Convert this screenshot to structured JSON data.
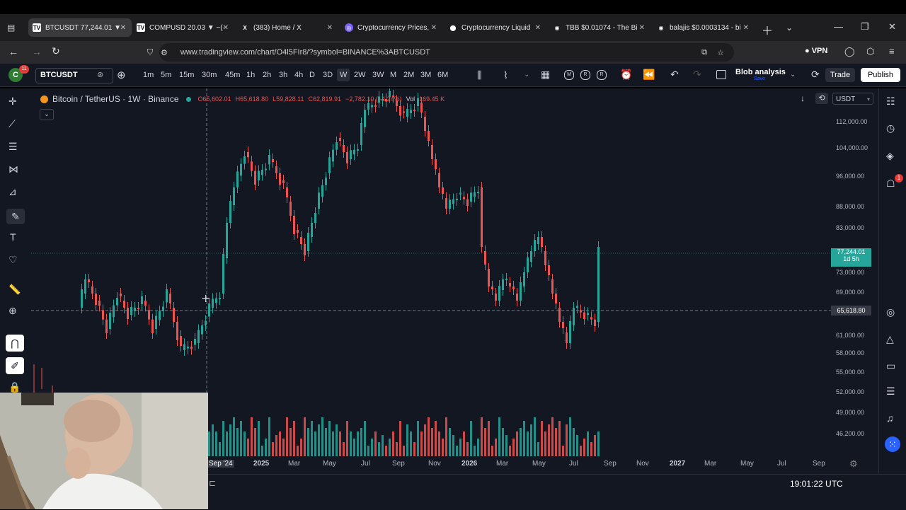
{
  "browser": {
    "tabs": [
      {
        "title": "BTCUSDT 77,244.01 ▼ ·",
        "active": true
      },
      {
        "title": "COMPUSD 20.03 ▼ −(·"
      },
      {
        "title": "(383) Home / X"
      },
      {
        "title": "Cryptocurrency Prices,"
      },
      {
        "title": "Cryptocurrency Liquid"
      },
      {
        "title": "TBB $0.01074 - The Bi"
      },
      {
        "title": "balajis $0.0003134 - bi"
      }
    ],
    "url": "www.tradingview.com/chart/O4l5FIr8/?symbol=BINANCE%3ABTCUSDT",
    "vpn_label": "VPN"
  },
  "toolbar": {
    "avatar_letter": "C",
    "avatar_badge": "11",
    "symbol": "BTCUSDT",
    "timeframes": [
      "1m",
      "5m",
      "15m",
      "30m",
      "45m",
      "1h",
      "2h",
      "3h",
      "4h",
      "D",
      "3D",
      "W",
      "2W",
      "3W",
      "M",
      "2M",
      "3M",
      "6M"
    ],
    "active_timeframe": "W",
    "layout_name": "Blob analysis",
    "layout_sub": "Save",
    "trade_label": "Trade",
    "publish_label": "Publish",
    "indicator_letters": [
      "M",
      "R",
      "R"
    ]
  },
  "legend": {
    "title": "Bitcoin / TetherUS · 1W · Binance",
    "open": "O65,602.01",
    "high": "H65,618.80",
    "low": "L59,828.11",
    "close": "C62,819.91",
    "change": "−2,782.10 (−4.24%)",
    "vol_label": "Vol",
    "vol": "169.45 K"
  },
  "price_axis": {
    "currency": "USDT",
    "labels": [
      "112,000.00",
      "104,000.00",
      "96,000.00",
      "88,000.00",
      "83,000.00",
      "73,000.00",
      "69,000.00",
      "61,000.00",
      "58,000.00",
      "55,000.00",
      "52,000.00",
      "49,000.00",
      "46,200.00"
    ],
    "last_price": "77,244.01",
    "countdown": "1d 5h",
    "crosshair_price": "65,618.80"
  },
  "time_axis": {
    "labels": [
      "Sep '24",
      "2025",
      "Mar",
      "May",
      "Jul",
      "Sep",
      "Nov",
      "2026",
      "Mar",
      "May",
      "Jul",
      "Sep",
      "Nov",
      "2027",
      "Mar",
      "May",
      "Jul",
      "Sep"
    ]
  },
  "status": {
    "clock": "19:01:22 UTC"
  },
  "right_sidebar": {
    "alerts_badge": "1"
  },
  "colors": {
    "up": "#26a69a",
    "down": "#ef5350",
    "bg": "#131722",
    "accent": "#2962ff",
    "last_price_bg": "#26a69a"
  }
}
